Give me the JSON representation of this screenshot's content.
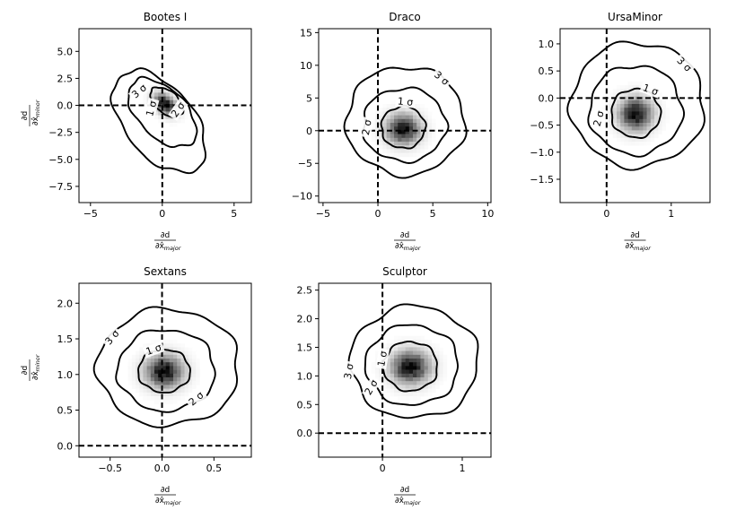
{
  "axis_labels": {
    "x_numerator": "∂d",
    "x_denominator": "∂x̂",
    "x_subscript": "major",
    "y_numerator": "∂d",
    "y_denominator": "∂x̂",
    "y_subscript": "minor"
  },
  "chart_data": [
    {
      "type": "contour",
      "title": "Bootes I",
      "xlim": [
        -5.8,
        6.2
      ],
      "ylim": [
        -9.0,
        7.1
      ],
      "xticks": [
        -5,
        0,
        5
      ],
      "yticks": [
        -7.5,
        -5.0,
        -2.5,
        0.0,
        2.5,
        5.0
      ],
      "xtick_labels": [
        "−5",
        "0",
        "5"
      ],
      "ytick_labels": [
        "−7.5",
        "−5.0",
        "−2.5",
        "0.0",
        "2.5",
        "5.0"
      ],
      "reference_lines": {
        "x": 0,
        "y": 0
      },
      "peak": {
        "x": 0.2,
        "y": 0.1,
        "sx": 0.45,
        "sy": 0.7,
        "tilt_deg": 30
      },
      "contours": [
        {
          "level": "1σ",
          "cx": 0.3,
          "cy": 0.3,
          "rx": 0.9,
          "ry": 1.55,
          "rot_deg": 35
        },
        {
          "level": "2σ",
          "cx": 0.0,
          "cy": -0.7,
          "rx": 1.85,
          "ry": 3.5,
          "rot_deg": 30
        },
        {
          "level": "3σ",
          "cx": -0.2,
          "cy": -1.5,
          "rx": 2.6,
          "ry": 5.1,
          "rot_deg": 26
        }
      ],
      "contour_labels": [
        {
          "text": "3 σ",
          "x": -1.6,
          "y": 1.3,
          "angle": -40
        },
        {
          "text": "1 σ",
          "x": -0.75,
          "y": -0.3,
          "angle": -75
        },
        {
          "text": "2 σ",
          "x": 1.1,
          "y": -0.4,
          "angle": -55
        }
      ]
    },
    {
      "type": "contour",
      "title": "Draco",
      "xlim": [
        -5.4,
        10.3
      ],
      "ylim": [
        -11.0,
        15.6
      ],
      "xticks": [
        -5,
        0,
        5,
        10
      ],
      "yticks": [
        -10,
        -5,
        0,
        5,
        10,
        15
      ],
      "xtick_labels": [
        "−5",
        "0",
        "5",
        "10"
      ],
      "ytick_labels": [
        "−10",
        "−5",
        "0",
        "5",
        "10",
        "15"
      ],
      "reference_lines": {
        "x": 0,
        "y": 0
      },
      "peak": {
        "x": 2.3,
        "y": 0.2,
        "sx": 1.0,
        "sy": 1.5,
        "tilt_deg": 0
      },
      "contours": [
        {
          "level": "1σ",
          "cx": 2.3,
          "cy": 0.5,
          "rx": 2.0,
          "ry": 3.2,
          "rot_deg": 0
        },
        {
          "level": "2σ",
          "cx": 2.4,
          "cy": 0.9,
          "rx": 3.8,
          "ry": 5.6,
          "rot_deg": 0
        },
        {
          "level": "3σ",
          "cx": 2.5,
          "cy": 1.5,
          "rx": 5.4,
          "ry": 8.3,
          "rot_deg": 0
        }
      ],
      "contour_labels": [
        {
          "text": "1 σ",
          "x": 2.5,
          "y": 4.4,
          "angle": 5
        },
        {
          "text": "3 σ",
          "x": 5.8,
          "y": 8.0,
          "angle": 40
        },
        {
          "text": "2 σ",
          "x": -1.0,
          "y": 0.5,
          "angle": -80
        }
      ]
    },
    {
      "type": "contour",
      "title": "UrsaMinor",
      "xlim": [
        -0.72,
        1.6
      ],
      "ylim": [
        -1.93,
        1.28
      ],
      "xticks": [
        0,
        1
      ],
      "yticks": [
        -1.5,
        -1.0,
        -0.5,
        0.0,
        0.5,
        1.0
      ],
      "xtick_labels": [
        "0",
        "1"
      ],
      "ytick_labels": [
        "−1.5",
        "−1.0",
        "−0.5",
        "0.0",
        "0.5",
        "1.0"
      ],
      "reference_lines": {
        "x": 0,
        "y": 0
      },
      "peak": {
        "x": 0.45,
        "y": -0.3,
        "sx": 0.17,
        "sy": 0.2,
        "tilt_deg": 0
      },
      "contours": [
        {
          "level": "1σ",
          "cx": 0.45,
          "cy": -0.28,
          "rx": 0.38,
          "ry": 0.45,
          "rot_deg": 0
        },
        {
          "level": "2σ",
          "cx": 0.45,
          "cy": -0.22,
          "rx": 0.72,
          "ry": 0.82,
          "rot_deg": 0
        },
        {
          "level": "3σ",
          "cx": 0.48,
          "cy": -0.12,
          "rx": 1.03,
          "ry": 1.15,
          "rot_deg": 0
        }
      ],
      "contour_labels": [
        {
          "text": "1 σ",
          "x": 0.68,
          "y": 0.15,
          "angle": 20
        },
        {
          "text": "3 σ",
          "x": 1.2,
          "y": 0.62,
          "angle": 45
        },
        {
          "text": "2 σ",
          "x": -0.12,
          "y": -0.38,
          "angle": -75
        }
      ]
    },
    {
      "type": "contour",
      "title": "Sextans",
      "xlim": [
        -0.8,
        0.86
      ],
      "ylim": [
        -0.16,
        2.28
      ],
      "xticks": [
        -0.5,
        0.0,
        0.5
      ],
      "yticks": [
        0.0,
        0.5,
        1.0,
        1.5,
        2.0
      ],
      "xtick_labels": [
        "−0.5",
        "0.0",
        "0.5"
      ],
      "ytick_labels": [
        "0.0",
        "0.5",
        "1.0",
        "1.5",
        "2.0"
      ],
      "reference_lines": {
        "x": 0,
        "y": 0
      },
      "peak": {
        "x": 0.02,
        "y": 1.04,
        "sx": 0.12,
        "sy": 0.15,
        "tilt_deg": 0
      },
      "contours": [
        {
          "level": "1σ",
          "cx": 0.02,
          "cy": 1.05,
          "rx": 0.25,
          "ry": 0.3,
          "rot_deg": 0
        },
        {
          "level": "2σ",
          "cx": 0.04,
          "cy": 1.06,
          "rx": 0.47,
          "ry": 0.57,
          "rot_deg": 0
        },
        {
          "level": "3σ",
          "cx": 0.06,
          "cy": 1.1,
          "rx": 0.68,
          "ry": 0.82,
          "rot_deg": 0
        }
      ],
      "contour_labels": [
        {
          "text": "1 σ",
          "x": -0.08,
          "y": 1.35,
          "angle": -20
        },
        {
          "text": "3 σ",
          "x": -0.48,
          "y": 1.52,
          "angle": -50
        },
        {
          "text": "2 σ",
          "x": 0.33,
          "y": 0.66,
          "angle": -40
        }
      ]
    },
    {
      "type": "contour",
      "title": "Sculptor",
      "xlim": [
        -0.8,
        1.36
      ],
      "ylim": [
        -0.42,
        2.62
      ],
      "xticks": [
        0,
        1
      ],
      "yticks": [
        0.0,
        0.5,
        1.0,
        1.5,
        2.0,
        2.5
      ],
      "xtick_labels": [
        "0",
        "1"
      ],
      "ytick_labels": [
        "0.0",
        "0.5",
        "1.0",
        "1.5",
        "2.0",
        "2.5"
      ],
      "reference_lines": {
        "x": 0,
        "y": 0
      },
      "peak": {
        "x": 0.35,
        "y": 1.15,
        "sx": 0.16,
        "sy": 0.19,
        "tilt_deg": 0
      },
      "contours": [
        {
          "level": "1σ",
          "cx": 0.35,
          "cy": 1.17,
          "rx": 0.34,
          "ry": 0.43,
          "rot_deg": 0
        },
        {
          "level": "2σ",
          "cx": 0.37,
          "cy": 1.19,
          "rx": 0.58,
          "ry": 0.7,
          "rot_deg": 0
        },
        {
          "level": "3σ",
          "cx": 0.4,
          "cy": 1.24,
          "rx": 0.8,
          "ry": 0.98,
          "rot_deg": 0
        }
      ],
      "contour_labels": [
        {
          "text": "1 σ",
          "x": 0.0,
          "y": 1.3,
          "angle": -80
        },
        {
          "text": "3 σ",
          "x": -0.42,
          "y": 1.08,
          "angle": -80
        },
        {
          "text": "2 σ",
          "x": -0.14,
          "y": 0.8,
          "angle": -60
        }
      ]
    }
  ]
}
